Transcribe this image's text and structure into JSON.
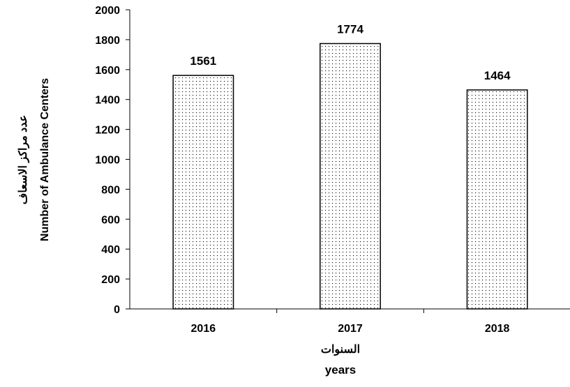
{
  "chart_data": {
    "type": "bar",
    "categories": [
      "2016",
      "2017",
      "2018"
    ],
    "values": [
      1561,
      1774,
      1464
    ],
    "data_labels": [
      "1561",
      "1774",
      "1464"
    ],
    "title": "",
    "xlabel_ar": "السنوات",
    "xlabel": "years",
    "ylabel_ar": "عدد مراكز الاسعاف",
    "ylabel": "Number of Ambulance Centers",
    "ylim": [
      0,
      2000
    ],
    "yticks": [
      "0",
      "200",
      "400",
      "600",
      "800",
      "1000",
      "1200",
      "1400",
      "1600",
      "1800",
      "2000"
    ],
    "grid": false,
    "legend": "none",
    "bar_fill": "dotted",
    "colors": {
      "bar_border": "#000000",
      "bar_dots": "#000000",
      "background": "#ffffff",
      "axis": "#000000"
    }
  }
}
